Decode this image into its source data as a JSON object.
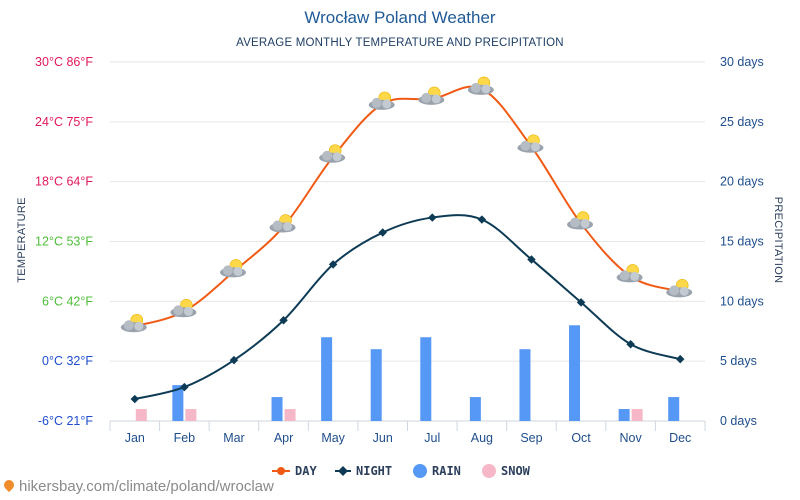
{
  "colors": {
    "day": "#f05a14",
    "night": "#0d3b55",
    "rain": "#5598f5",
    "snow": "#f6b8c8",
    "title": "#1f5a96",
    "grid": "#e6e6e6"
  },
  "chart_data": {
    "type": "line+bar",
    "title": "Wrocław Poland Weather",
    "subtitle": "AVERAGE MONTHLY TEMPERATURE AND PRECIPITATION",
    "ylabel_left": "TEMPERATURE",
    "ylabel_right": "PRECIPITATION",
    "categories": [
      "Jan",
      "Feb",
      "Mar",
      "Apr",
      "May",
      "Jun",
      "Jul",
      "Aug",
      "Sep",
      "Oct",
      "Nov",
      "Dec"
    ],
    "left_axis": {
      "ylim": [
        -6,
        30
      ],
      "ticks": [
        {
          "value": 30,
          "label": "30°C 86°F",
          "color": "#e0185c"
        },
        {
          "value": 24,
          "label": "24°C 75°F",
          "color": "#e0185c"
        },
        {
          "value": 18,
          "label": "18°C 64°F",
          "color": "#e0185c"
        },
        {
          "value": 12,
          "label": "12°C 53°F",
          "color": "#4fbf3a"
        },
        {
          "value": 6,
          "label": "6°C 42°F",
          "color": "#4fbf3a"
        },
        {
          "value": 0,
          "label": "0°C 32°F",
          "color": "#1f4ecc"
        },
        {
          "value": -6,
          "label": "-6°C 21°F",
          "color": "#1f4ecc"
        }
      ]
    },
    "right_axis": {
      "ylim": [
        0,
        30
      ],
      "ticks": [
        {
          "value": 30,
          "label": "30 days"
        },
        {
          "value": 25,
          "label": "25 days"
        },
        {
          "value": 20,
          "label": "20 days"
        },
        {
          "value": 15,
          "label": "15 days"
        },
        {
          "value": 10,
          "label": "10 days"
        },
        {
          "value": 5,
          "label": "5 days"
        },
        {
          "value": 0,
          "label": "0 days"
        }
      ]
    },
    "series": [
      {
        "name": "DAY",
        "kind": "line",
        "axis": "left",
        "values": [
          3.5,
          5,
          9,
          13.5,
          20.5,
          25.8,
          26.3,
          27.3,
          21.5,
          13.8,
          8.5,
          7
        ]
      },
      {
        "name": "NIGHT",
        "kind": "line",
        "axis": "left",
        "values": [
          -3.8,
          -2.6,
          0.1,
          4.1,
          9.7,
          12.9,
          14.4,
          14.2,
          10.2,
          5.9,
          1.7,
          0.2
        ]
      },
      {
        "name": "RAIN",
        "kind": "bar",
        "axis": "right",
        "values": [
          0,
          3,
          0,
          2,
          7,
          6,
          7,
          2,
          6,
          8,
          1,
          2
        ]
      },
      {
        "name": "SNOW",
        "kind": "bar",
        "axis": "right",
        "values": [
          1,
          1,
          0,
          1,
          0,
          0,
          0,
          0,
          0,
          0,
          1,
          0
        ]
      }
    ],
    "legend": {
      "position": "bottom-center",
      "items": [
        "DAY",
        "NIGHT",
        "RAIN",
        "SNOW"
      ]
    }
  },
  "footer": {
    "source": "hikersbay.com/climate/poland/wroclaw"
  }
}
